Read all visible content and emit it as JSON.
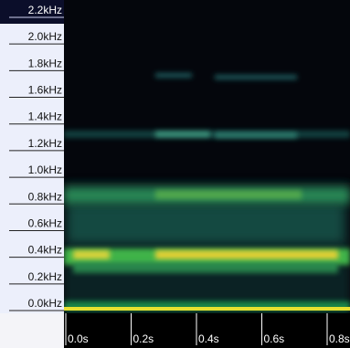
{
  "chart_data": {
    "type": "spectrogram",
    "ylim": [
      0,
      2.2
    ],
    "yticks": [
      {
        "value": 0,
        "label": "0.0kHz"
      },
      {
        "value": 0.2,
        "label": "0.2kHz"
      },
      {
        "value": 0.4,
        "label": "0.4kHz"
      },
      {
        "value": 0.6,
        "label": "0.6kHz"
      },
      {
        "value": 0.8,
        "label": "0.8kHz"
      },
      {
        "value": 1.0,
        "label": "1.0kHz"
      },
      {
        "value": 1.2,
        "label": "1.2kHz"
      },
      {
        "value": 1.4,
        "label": "1.4kHz"
      },
      {
        "value": 1.6,
        "label": "1.6kHz"
      },
      {
        "value": 1.8,
        "label": "1.8kHz"
      },
      {
        "value": 2.0,
        "label": "2.0kHz"
      },
      {
        "value": 2.2,
        "label": "2.2kHz"
      }
    ],
    "xlim": [
      0,
      0.8
    ],
    "xticks": [
      {
        "value": 0,
        "label": "0.0s"
      },
      {
        "value": 0.2,
        "label": "0.2s"
      },
      {
        "value": 0.4,
        "label": "0.4s"
      },
      {
        "value": 0.6,
        "label": "0.6s"
      },
      {
        "value": 0.8,
        "label": "0.8s"
      }
    ]
  }
}
